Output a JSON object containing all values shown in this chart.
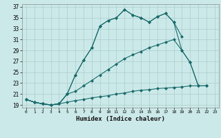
{
  "xlabel": "Humidex (Indice chaleur)",
  "bg_color": "#cce9e9",
  "grid_color": "#aacccc",
  "line_color": "#1a6b6b",
  "xlim": [
    -0.5,
    23.5
  ],
  "ylim": [
    18.5,
    37.5
  ],
  "xticks": [
    0,
    1,
    2,
    3,
    4,
    5,
    6,
    7,
    8,
    9,
    10,
    11,
    12,
    13,
    14,
    15,
    16,
    17,
    18,
    19,
    20,
    21,
    22,
    23
  ],
  "yticks": [
    19,
    21,
    23,
    25,
    27,
    29,
    31,
    33,
    35,
    37
  ],
  "curve1_x": [
    0,
    1,
    2,
    3,
    4,
    5,
    6,
    7,
    8,
    9,
    10,
    11,
    12,
    13,
    14,
    15,
    16,
    17,
    18,
    19
  ],
  "curve1_y": [
    20.0,
    19.5,
    19.2,
    19.0,
    19.2,
    21.0,
    24.5,
    27.2,
    29.5,
    33.5,
    34.5,
    35.0,
    36.5,
    35.5,
    35.0,
    34.2,
    35.2,
    35.8,
    34.2,
    31.5
  ],
  "curve2_x": [
    0,
    1,
    2,
    3,
    4,
    5,
    6,
    7,
    8,
    9,
    10,
    11,
    12,
    13,
    14,
    15,
    16,
    17,
    18,
    19,
    20,
    21,
    22
  ],
  "curve2_y": [
    20.0,
    19.5,
    19.2,
    19.0,
    19.2,
    21.0,
    24.5,
    27.2,
    29.5,
    33.5,
    34.5,
    35.0,
    36.5,
    35.5,
    35.0,
    34.2,
    35.2,
    35.8,
    34.2,
    29.0,
    26.8,
    22.5,
    22.5
  ],
  "curve3_x": [
    0,
    1,
    2,
    3,
    4,
    5,
    6,
    7,
    8,
    9,
    10,
    11,
    12,
    13,
    14,
    15,
    16,
    17,
    18,
    19,
    20,
    21,
    22
  ],
  "curve3_y": [
    20.0,
    19.5,
    19.2,
    19.0,
    19.2,
    21.0,
    21.5,
    22.5,
    23.5,
    24.5,
    25.5,
    26.5,
    27.5,
    28.2,
    28.8,
    29.5,
    30.0,
    30.5,
    31.0,
    29.0,
    26.8,
    22.5,
    22.5
  ],
  "curve4_x": [
    0,
    1,
    2,
    3,
    4,
    5,
    6,
    7,
    8,
    9,
    10,
    11,
    12,
    13,
    14,
    15,
    16,
    17,
    18,
    19,
    20,
    21,
    22
  ],
  "curve4_y": [
    20.0,
    19.5,
    19.2,
    19.0,
    19.2,
    19.5,
    19.8,
    20.0,
    20.3,
    20.5,
    20.7,
    21.0,
    21.2,
    21.5,
    21.7,
    21.8,
    22.0,
    22.1,
    22.2,
    22.3,
    22.5,
    22.5,
    22.5
  ]
}
